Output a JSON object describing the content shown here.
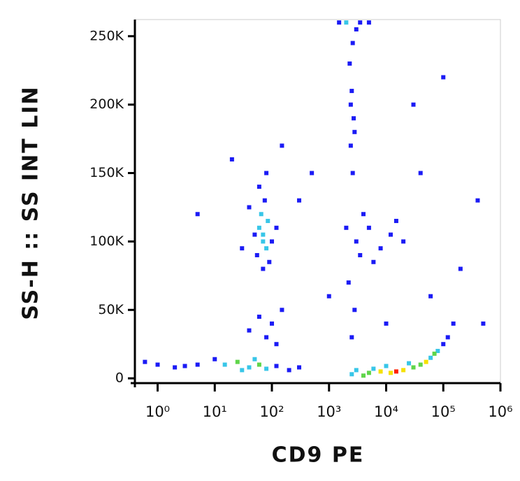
{
  "chart_data": {
    "type": "scatter",
    "x_label": "CD9 PE",
    "y_label": "SS-H :: SS INT LIN",
    "x_scale": "log",
    "xlim": [
      0.4,
      1000000
    ],
    "ylim": [
      -3500,
      262144
    ],
    "xticks": [
      {
        "value": 1,
        "label": "10⁰"
      },
      {
        "value": 10,
        "label": "10¹"
      },
      {
        "value": 100,
        "label": "10²"
      },
      {
        "value": 1000,
        "label": "10³"
      },
      {
        "value": 10000,
        "label": "10⁴"
      },
      {
        "value": 100000,
        "label": "10⁵"
      },
      {
        "value": 1000000,
        "label": "10⁶"
      }
    ],
    "yticks": [
      0,
      {
        "value": 50000,
        "label": "50K"
      },
      {
        "value": 100000,
        "label": "100K"
      },
      {
        "value": 150000,
        "label": "150K"
      },
      {
        "value": 200000,
        "label": "200K"
      },
      {
        "value": 250000,
        "label": "250K"
      }
    ],
    "x": [
      70,
      60,
      80,
      65,
      75,
      55,
      90,
      50,
      85,
      70,
      100,
      40,
      60,
      120,
      30,
      80,
      70,
      15,
      25,
      40,
      60,
      80,
      120,
      200,
      10,
      30,
      50,
      5,
      3,
      2,
      1,
      0.6,
      300,
      100,
      80,
      150,
      60,
      120,
      40,
      3000,
      5000,
      8000,
      15000,
      20000,
      30000,
      12000,
      40000,
      60000,
      80000,
      100000,
      120000,
      2500,
      6000,
      25000,
      50000,
      70000,
      10000,
      4000,
      150000,
      2500,
      2800,
      2200,
      2600,
      2400,
      2700,
      2500,
      2300,
      2600,
      3000,
      2400,
      2800,
      2000,
      3500,
      5000,
      1500,
      3000,
      5000,
      8000,
      12000,
      4000,
      20000,
      2000,
      6000,
      15000,
      3500,
      1000,
      500,
      30000,
      100000,
      200000,
      400000,
      500000,
      300,
      20,
      5,
      10000,
      60000,
      150,
      40000
    ],
    "values": [
      100000,
      110000,
      95000,
      120000,
      130000,
      90000,
      85000,
      105000,
      115000,
      80000,
      100000,
      125000,
      140000,
      110000,
      95000,
      150000,
      105000,
      10000,
      12000,
      8000,
      10000,
      7000,
      9000,
      6000,
      14000,
      6000,
      14000,
      10000,
      9000,
      8000,
      10000,
      12000,
      8000,
      40000,
      30000,
      50000,
      45000,
      25000,
      35000,
      6000,
      4000,
      5000,
      5000,
      6000,
      8000,
      4000,
      10000,
      15000,
      20000,
      25000,
      30000,
      3000,
      7000,
      11000,
      12000,
      18000,
      9000,
      2000,
      40000,
      30000,
      50000,
      70000,
      150000,
      170000,
      190000,
      210000,
      230000,
      245000,
      255000,
      200000,
      180000,
      260000,
      260000,
      260000,
      260000,
      100000,
      110000,
      95000,
      105000,
      120000,
      100000,
      110000,
      85000,
      115000,
      90000,
      60000,
      150000,
      200000,
      220000,
      80000,
      130000,
      40000,
      130000,
      160000,
      120000,
      40000,
      60000,
      170000,
      150000
    ],
    "colors": [
      "#38c6e8",
      "#38c6e8",
      "#38c6e8",
      "#38c6e8",
      "#1b1bf5",
      "#1b1bf5",
      "#1b1bf5",
      "#1b1bf5",
      "#38c6e8",
      "#1b1bf5",
      "#1b1bf5",
      "#1b1bf5",
      "#1b1bf5",
      "#1b1bf5",
      "#1b1bf5",
      "#1b1bf5",
      "#38c6e8",
      "#38c6e8",
      "#5fd54a",
      "#38c6e8",
      "#5fd54a",
      "#38c6e8",
      "#1b1bf5",
      "#1b1bf5",
      "#1b1bf5",
      "#38c6e8",
      "#38c6e8",
      "#1b1bf5",
      "#1b1bf5",
      "#1b1bf5",
      "#1b1bf5",
      "#1b1bf5",
      "#1b1bf5",
      "#1b1bf5",
      "#1b1bf5",
      "#1b1bf5",
      "#1b1bf5",
      "#1b1bf5",
      "#1b1bf5",
      "#38c6e8",
      "#5fd54a",
      "#f5e100",
      "#ff2000",
      "#f5e100",
      "#5fd54a",
      "#f5e100",
      "#5fd54a",
      "#38c6e8",
      "#38c6e8",
      "#1b1bf5",
      "#1b1bf5",
      "#38c6e8",
      "#38c6e8",
      "#38c6e8",
      "#f5e100",
      "#5fd54a",
      "#38c6e8",
      "#5fd54a",
      "#1b1bf5",
      "#1b1bf5",
      "#1b1bf5",
      "#1b1bf5",
      "#1b1bf5",
      "#1b1bf5",
      "#1b1bf5",
      "#1b1bf5",
      "#1b1bf5",
      "#1b1bf5",
      "#1b1bf5",
      "#1b1bf5",
      "#1b1bf5",
      "#38c6e8",
      "#1b1bf5",
      "#1b1bf5",
      "#1b1bf5",
      "#1b1bf5",
      "#1b1bf5",
      "#1b1bf5",
      "#1b1bf5",
      "#1b1bf5",
      "#1b1bf5",
      "#1b1bf5",
      "#1b1bf5",
      "#1b1bf5",
      "#1b1bf5",
      "#1b1bf5",
      "#1b1bf5",
      "#1b1bf5",
      "#1b1bf5",
      "#1b1bf5",
      "#1b1bf5",
      "#1b1bf5",
      "#1b1bf5",
      "#1b1bf5",
      "#1b1bf5",
      "#1b1bf5",
      "#1b1bf5",
      "#1b1bf5",
      "#1b1bf5"
    ]
  }
}
